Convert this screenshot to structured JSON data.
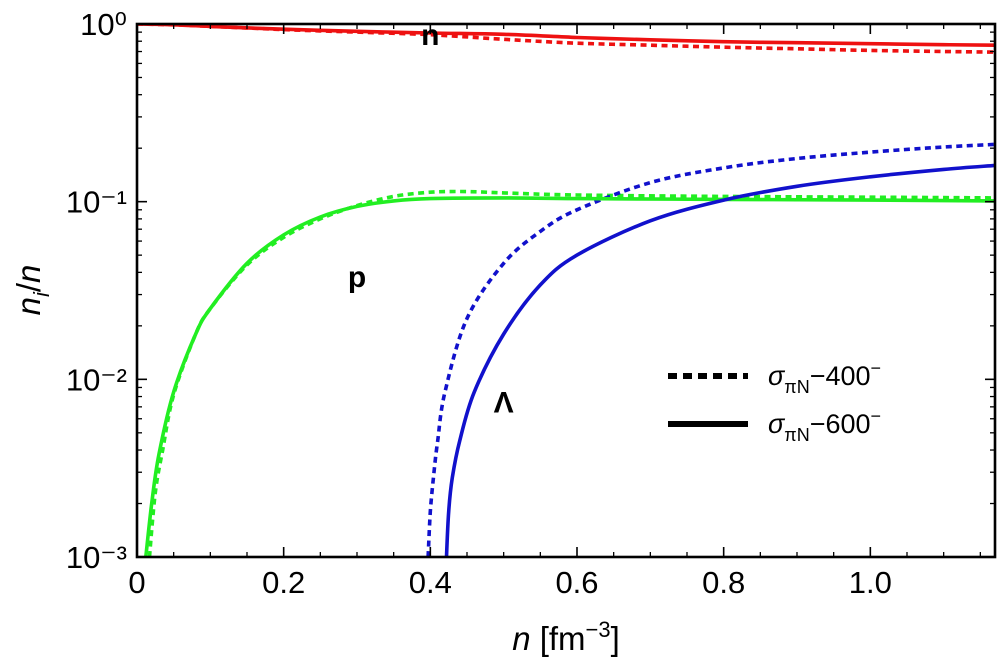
{
  "chart_data": {
    "type": "line",
    "xlabel": "n [fm⁻³]",
    "ylabel": "nᵢ/n",
    "xlim": [
      0,
      1.17
    ],
    "ylim": [
      0.001,
      1
    ],
    "yscale": "log",
    "x_ticks": [
      {
        "value": 0,
        "label": "0"
      },
      {
        "value": 0.2,
        "label": "0.2"
      },
      {
        "value": 0.4,
        "label": "0.4"
      },
      {
        "value": 0.6,
        "label": "0.6"
      },
      {
        "value": 0.8,
        "label": "0.8"
      },
      {
        "value": 1.0,
        "label": "1.0"
      }
    ],
    "y_ticks": [
      {
        "value": 1,
        "label": "10⁰"
      },
      {
        "value": 0.1,
        "label": "10⁻¹"
      },
      {
        "value": 0.01,
        "label": "10⁻²"
      },
      {
        "value": 0.001,
        "label": "10⁻³"
      }
    ],
    "legend": {
      "position": "lower-right",
      "entries": [
        {
          "label": "σπN-400⁻",
          "style": "dotted"
        },
        {
          "label": "σπN-600⁻",
          "style": "solid"
        }
      ]
    },
    "curve_labels": [
      {
        "text": "n",
        "x": 0.4,
        "y": 0.76
      },
      {
        "text": "p",
        "x": 0.3,
        "y": 0.033
      },
      {
        "text": "Λ",
        "x": 0.5,
        "y": 0.0065
      }
    ],
    "series": [
      {
        "name": "n",
        "set": "σπN-600⁻",
        "color": "#ee1111",
        "style": "solid",
        "x": [
          0,
          0.05,
          0.1,
          0.2,
          0.3,
          0.4,
          0.5,
          0.6,
          0.7,
          0.8,
          0.9,
          1.0,
          1.1,
          1.17
        ],
        "y": [
          1.0,
          0.99,
          0.97,
          0.935,
          0.91,
          0.89,
          0.875,
          0.84,
          0.815,
          0.795,
          0.785,
          0.775,
          0.765,
          0.76
        ]
      },
      {
        "name": "n",
        "set": "σπN-400⁻",
        "color": "#ee1111",
        "style": "dotted",
        "x": [
          0,
          0.05,
          0.1,
          0.2,
          0.3,
          0.4,
          0.5,
          0.6,
          0.7,
          0.8,
          0.9,
          1.0,
          1.1,
          1.17
        ],
        "y": [
          1.0,
          0.99,
          0.97,
          0.93,
          0.9,
          0.87,
          0.82,
          0.78,
          0.76,
          0.74,
          0.725,
          0.71,
          0.7,
          0.695
        ]
      },
      {
        "name": "p",
        "set": "σπN-600⁻",
        "color": "#22ee22",
        "style": "solid",
        "x": [
          0.012,
          0.02,
          0.03,
          0.05,
          0.08,
          0.1,
          0.15,
          0.2,
          0.25,
          0.3,
          0.35,
          0.4,
          0.5,
          0.6,
          0.8,
          1.0,
          1.17
        ],
        "y": [
          0.001,
          0.002,
          0.0038,
          0.0085,
          0.018,
          0.025,
          0.045,
          0.065,
          0.082,
          0.094,
          0.101,
          0.104,
          0.105,
          0.104,
          0.103,
          0.102,
          0.101
        ]
      },
      {
        "name": "p",
        "set": "σπN-400⁻",
        "color": "#22ee22",
        "style": "dotted",
        "x": [
          0.017,
          0.025,
          0.035,
          0.05,
          0.08,
          0.1,
          0.15,
          0.2,
          0.25,
          0.3,
          0.35,
          0.4,
          0.45,
          0.5,
          0.6,
          0.8,
          1.0,
          1.17
        ],
        "y": [
          0.001,
          0.0023,
          0.004,
          0.0082,
          0.018,
          0.025,
          0.044,
          0.063,
          0.08,
          0.095,
          0.107,
          0.113,
          0.114,
          0.112,
          0.109,
          0.107,
          0.106,
          0.105
        ]
      },
      {
        "name": "Λ",
        "set": "σπN-600⁻",
        "color": "#1111cc",
        "style": "solid",
        "x": [
          0.422,
          0.425,
          0.43,
          0.44,
          0.46,
          0.5,
          0.55,
          0.6,
          0.7,
          0.8,
          0.9,
          1.0,
          1.1,
          1.17
        ],
        "y": [
          0.001,
          0.0018,
          0.0028,
          0.0045,
          0.0085,
          0.018,
          0.034,
          0.05,
          0.078,
          0.102,
          0.122,
          0.138,
          0.152,
          0.16
        ]
      },
      {
        "name": "Λ",
        "set": "σπN-400⁻",
        "color": "#1111cc",
        "style": "dotted",
        "x": [
          0.397,
          0.4,
          0.405,
          0.41,
          0.42,
          0.45,
          0.5,
          0.55,
          0.6,
          0.7,
          0.8,
          0.9,
          1.0,
          1.1,
          1.17
        ],
        "y": [
          0.001,
          0.0018,
          0.003,
          0.0045,
          0.0085,
          0.022,
          0.045,
          0.068,
          0.09,
          0.128,
          0.155,
          0.175,
          0.19,
          0.203,
          0.21
        ]
      }
    ]
  }
}
